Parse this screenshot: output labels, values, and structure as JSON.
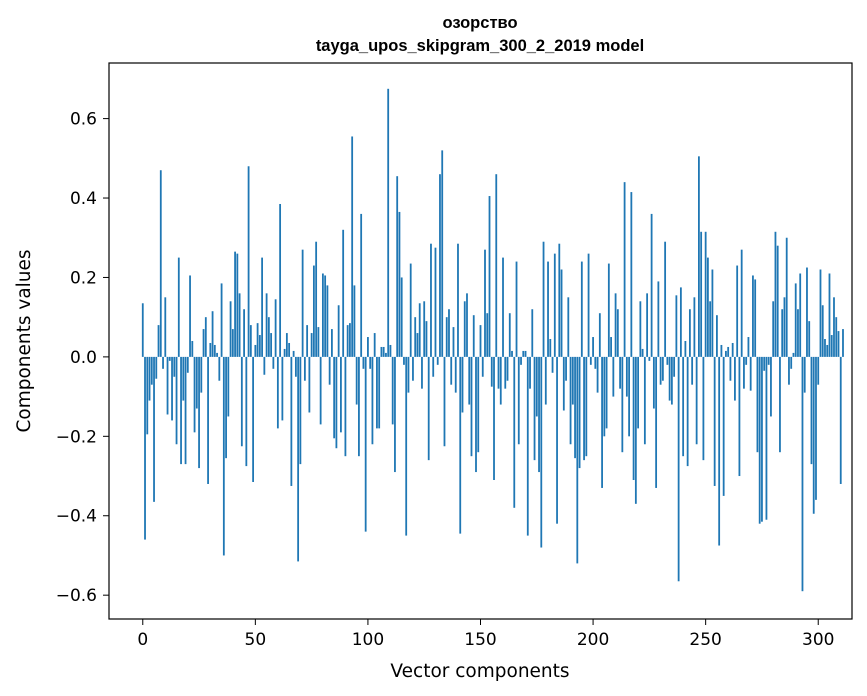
{
  "chart_data": {
    "type": "bar",
    "title": "озорство",
    "subtitle": "tayga_upos_skipgram_300_2_2019 model",
    "xlabel": "Vector components",
    "ylabel": "Components values",
    "xlim": [
      -15,
      315
    ],
    "ylim": [
      -0.66,
      0.74
    ],
    "xticks": [
      0,
      50,
      100,
      150,
      200,
      250,
      300
    ],
    "yticks": [
      -0.6,
      -0.4,
      -0.2,
      0.0,
      0.2,
      0.4,
      0.6
    ],
    "ytick_labels": [
      "−0.6",
      "−0.4",
      "−0.2",
      "0.0",
      "0.2",
      "0.4",
      "0.6"
    ],
    "bar_color": "#1f77b4",
    "grid": false,
    "values": [
      0.135,
      -0.46,
      -0.195,
      -0.11,
      -0.07,
      -0.365,
      -0.055,
      0.08,
      0.47,
      -0.03,
      0.15,
      -0.145,
      -0.01,
      -0.16,
      -0.05,
      -0.22,
      0.25,
      -0.27,
      -0.11,
      -0.27,
      -0.04,
      0.205,
      0.04,
      -0.19,
      -0.13,
      -0.28,
      -0.09,
      0.07,
      0.1,
      -0.32,
      0.035,
      0.115,
      0.03,
      0.01,
      -0.06,
      0.185,
      -0.5,
      -0.255,
      -0.15,
      0.14,
      0.07,
      0.265,
      0.26,
      0.16,
      -0.225,
      0.12,
      -0.275,
      0.48,
      0.08,
      -0.315,
      0.03,
      0.085,
      0.055,
      0.25,
      -0.045,
      0.16,
      0.1,
      0.06,
      -0.03,
      0.145,
      -0.18,
      0.385,
      -0.16,
      0.02,
      0.06,
      0.035,
      -0.325,
      0.015,
      -0.05,
      -0.515,
      -0.27,
      0.27,
      -0.06,
      0.08,
      -0.14,
      0.06,
      0.23,
      0.29,
      0.075,
      -0.17,
      0.21,
      0.205,
      0.18,
      -0.07,
      0.07,
      -0.205,
      -0.23,
      0.13,
      -0.19,
      0.32,
      -0.25,
      0.08,
      0.085,
      0.555,
      0.18,
      -0.12,
      -0.25,
      0.36,
      -0.03,
      -0.44,
      0.05,
      -0.03,
      -0.22,
      0.06,
      -0.18,
      -0.18,
      0.025,
      0.025,
      0.01,
      0.675,
      0.03,
      -0.17,
      -0.29,
      0.455,
      0.365,
      0.2,
      -0.02,
      -0.45,
      -0.09,
      0.235,
      -0.06,
      0.1,
      0.06,
      0.135,
      -0.08,
      0.14,
      0.09,
      -0.26,
      0.285,
      -0.05,
      0.275,
      -0.02,
      0.46,
      0.52,
      -0.225,
      0.1,
      0.12,
      -0.07,
      0.075,
      -0.09,
      0.285,
      -0.445,
      -0.14,
      0.14,
      0.16,
      -0.12,
      -0.25,
      0.105,
      -0.29,
      -0.24,
      0.08,
      -0.05,
      0.27,
      0.11,
      0.405,
      -0.075,
      -0.31,
      0.46,
      -0.08,
      -0.12,
      0.25,
      -0.08,
      -0.06,
      0.11,
      0.015,
      -0.38,
      0.24,
      -0.22,
      -0.02,
      0.015,
      0.015,
      -0.45,
      -0.08,
      0.12,
      -0.26,
      -0.15,
      -0.29,
      -0.48,
      0.29,
      -0.12,
      0.24,
      0.045,
      -0.04,
      0.26,
      -0.42,
      0.285,
      0.22,
      -0.135,
      -0.06,
      0.15,
      -0.22,
      -0.12,
      -0.255,
      -0.52,
      -0.28,
      0.24,
      -0.26,
      -0.25,
      0.26,
      -0.02,
      0.05,
      -0.03,
      -0.09,
      0.11,
      -0.33,
      -0.2,
      -0.18,
      0.235,
      0.05,
      -0.1,
      0.16,
      0.12,
      -0.08,
      -0.24,
      0.44,
      -0.1,
      -0.2,
      0.415,
      -0.31,
      -0.37,
      -0.18,
      0.14,
      0.02,
      -0.22,
      0.16,
      -0.01,
      0.36,
      -0.13,
      -0.33,
      0.19,
      -0.07,
      -0.06,
      0.29,
      -0.02,
      -0.11,
      -0.12,
      -0.05,
      0.155,
      -0.565,
      0.175,
      -0.25,
      0.04,
      -0.275,
      0.12,
      -0.07,
      0.15,
      -0.22,
      0.505,
      0.315,
      -0.26,
      0.315,
      0.25,
      0.14,
      0.22,
      -0.325,
      0.105,
      -0.475,
      0.03,
      -0.35,
      0.015,
      0.025,
      -0.06,
      0.035,
      -0.11,
      0.23,
      -0.3,
      0.27,
      -0.08,
      -0.02,
      0.05,
      -0.085,
      0.205,
      0.195,
      -0.24,
      -0.42,
      -0.415,
      -0.035,
      -0.41,
      -0.02,
      -0.15,
      0.14,
      0.315,
      0.28,
      -0.24,
      0.12,
      0.15,
      0.3,
      -0.07,
      -0.03,
      0.01,
      0.185,
      0.12,
      0.21,
      -0.59,
      -0.09,
      0.225,
      0.09,
      -0.27,
      -0.395,
      -0.36,
      -0.07,
      0.22,
      0.13,
      0.045,
      0.03,
      0.21,
      0.055,
      0.15,
      0.1,
      0.065,
      -0.32,
      0.07
    ]
  }
}
